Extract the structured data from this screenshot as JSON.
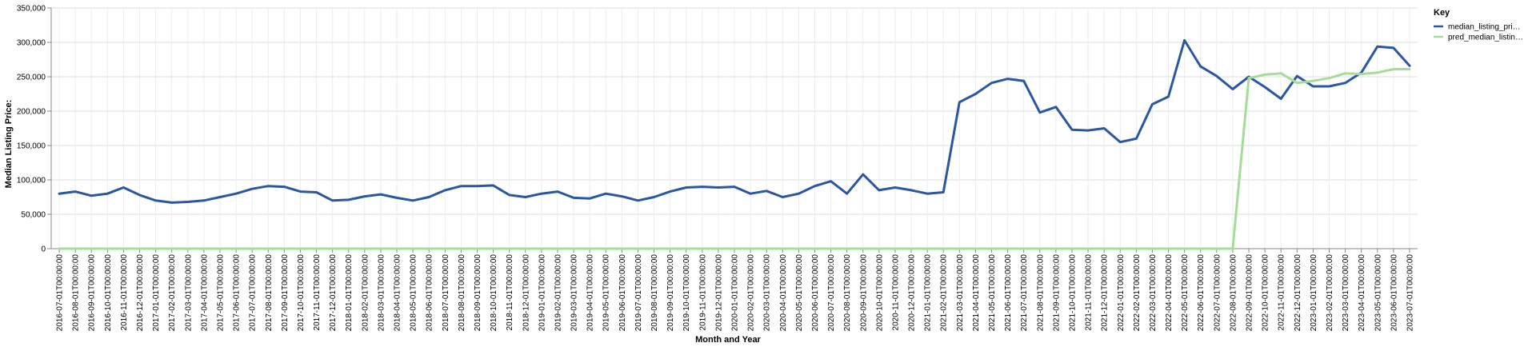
{
  "chart_data": {
    "type": "line",
    "xlabel": "Month and Year",
    "ylabel": "Median Listing Price:",
    "ylim": [
      0,
      350000
    ],
    "yticks": [
      {
        "value": 0,
        "label": "0"
      },
      {
        "value": 50000,
        "label": "50,000"
      },
      {
        "value": 100000,
        "label": "100,000"
      },
      {
        "value": 150000,
        "label": "150,000"
      },
      {
        "value": 200000,
        "label": "200,000"
      },
      {
        "value": 250000,
        "label": "250,000"
      },
      {
        "value": 300000,
        "label": "300,000"
      },
      {
        "value": 350000,
        "label": "350,000"
      }
    ],
    "grid": true,
    "legend": {
      "title": "Key",
      "position": "right",
      "entries": [
        {
          "label": "median_listing_pri…",
          "color": "#2b57a0"
        },
        {
          "label": "pred_median_listin…",
          "color": "#a6dc99"
        }
      ]
    },
    "x": [
      "2016-07-01T00:00:00",
      "2016-08-01T00:00:00",
      "2016-09-01T00:00:00",
      "2016-10-01T00:00:00",
      "2016-11-01T00:00:00",
      "2016-12-01T00:00:00",
      "2017-01-01T00:00:00",
      "2017-02-01T00:00:00",
      "2017-03-01T00:00:00",
      "2017-04-01T00:00:00",
      "2017-05-01T00:00:00",
      "2017-06-01T00:00:00",
      "2017-07-01T00:00:00",
      "2017-08-01T00:00:00",
      "2017-09-01T00:00:00",
      "2017-10-01T00:00:00",
      "2017-11-01T00:00:00",
      "2017-12-01T00:00:00",
      "2018-01-01T00:00:00",
      "2018-02-01T00:00:00",
      "2018-03-01T00:00:00",
      "2018-04-01T00:00:00",
      "2018-05-01T00:00:00",
      "2018-06-01T00:00:00",
      "2018-07-01T00:00:00",
      "2018-08-01T00:00:00",
      "2018-09-01T00:00:00",
      "2018-10-01T00:00:00",
      "2018-11-01T00:00:00",
      "2018-12-01T00:00:00",
      "2019-01-01T00:00:00",
      "2019-02-01T00:00:00",
      "2019-03-01T00:00:00",
      "2019-04-01T00:00:00",
      "2019-05-01T00:00:00",
      "2019-06-01T00:00:00",
      "2019-07-01T00:00:00",
      "2019-08-01T00:00:00",
      "2019-09-01T00:00:00",
      "2019-10-01T00:00:00",
      "2019-11-01T00:00:00",
      "2019-12-01T00:00:00",
      "2020-01-01T00:00:00",
      "2020-02-01T00:00:00",
      "2020-03-01T00:00:00",
      "2020-04-01T00:00:00",
      "2020-05-01T00:00:00",
      "2020-06-01T00:00:00",
      "2020-07-01T00:00:00",
      "2020-08-01T00:00:00",
      "2020-09-01T00:00:00",
      "2020-10-01T00:00:00",
      "2020-11-01T00:00:00",
      "2020-12-01T00:00:00",
      "2021-01-01T00:00:00",
      "2021-02-01T00:00:00",
      "2021-03-01T00:00:00",
      "2021-04-01T00:00:00",
      "2021-05-01T00:00:00",
      "2021-06-01T00:00:00",
      "2021-07-01T00:00:00",
      "2021-08-01T00:00:00",
      "2021-09-01T00:00:00",
      "2021-10-01T00:00:00",
      "2021-11-01T00:00:00",
      "2021-12-01T00:00:00",
      "2022-01-01T00:00:00",
      "2022-02-01T00:00:00",
      "2022-03-01T00:00:00",
      "2022-04-01T00:00:00",
      "2022-05-01T00:00:00",
      "2022-06-01T00:00:00",
      "2022-07-01T00:00:00",
      "2022-08-01T00:00:00",
      "2022-09-01T00:00:00",
      "2022-10-01T00:00:00",
      "2022-11-01T00:00:00",
      "2022-12-01T00:00:00",
      "2023-01-01T00:00:00",
      "2023-02-01T00:00:00",
      "2023-03-01T00:00:00",
      "2023-04-01T00:00:00",
      "2023-05-01T00:00:00",
      "2023-06-01T00:00:00",
      "2023-07-01T00:00:00"
    ],
    "series": [
      {
        "name": "median_listing_pri…",
        "color": "#2b57a0",
        "values": [
          80000,
          83000,
          77000,
          80000,
          89000,
          78000,
          70000,
          67000,
          68000,
          70000,
          75000,
          80000,
          87000,
          91000,
          90000,
          83000,
          82000,
          70000,
          71000,
          76000,
          79000,
          74000,
          70000,
          75000,
          85000,
          91000,
          91000,
          92000,
          78000,
          75000,
          80000,
          83000,
          74000,
          73000,
          80000,
          76000,
          70000,
          75000,
          83000,
          89000,
          90000,
          89000,
          90000,
          80000,
          84000,
          75000,
          80000,
          91000,
          98000,
          80000,
          108000,
          85000,
          89000,
          85000,
          80000,
          82000,
          213000,
          225000,
          241000,
          247000,
          244000,
          198000,
          206000,
          173000,
          172000,
          175000,
          155000,
          160000,
          210000,
          221000,
          303000,
          265000,
          251000,
          232000,
          250000,
          235000,
          218000,
          251000,
          236000,
          236000,
          241000,
          256000,
          294000,
          292000,
          266000
        ]
      },
      {
        "name": "pred_median_listin…",
        "color": "#a6dc99",
        "values": [
          0,
          0,
          0,
          0,
          0,
          0,
          0,
          0,
          0,
          0,
          0,
          0,
          0,
          0,
          0,
          0,
          0,
          0,
          0,
          0,
          0,
          0,
          0,
          0,
          0,
          0,
          0,
          0,
          0,
          0,
          0,
          0,
          0,
          0,
          0,
          0,
          0,
          0,
          0,
          0,
          0,
          0,
          0,
          0,
          0,
          0,
          0,
          0,
          0,
          0,
          0,
          0,
          0,
          0,
          0,
          0,
          0,
          0,
          0,
          0,
          0,
          0,
          0,
          0,
          0,
          0,
          0,
          0,
          0,
          0,
          0,
          0,
          0,
          0,
          248000,
          253000,
          255000,
          241000,
          244000,
          248000,
          255000,
          254000,
          256000,
          261000,
          261000
        ]
      }
    ]
  }
}
